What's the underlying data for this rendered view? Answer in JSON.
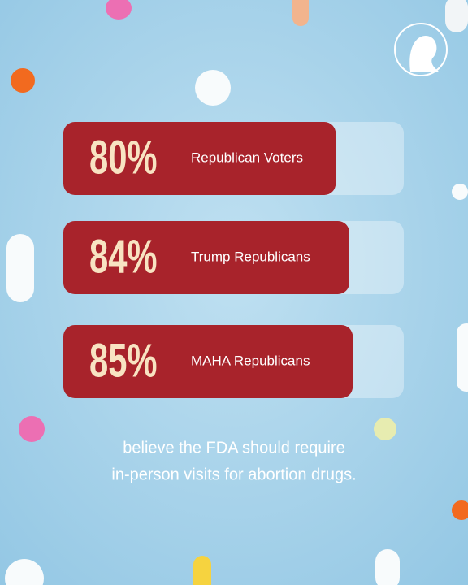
{
  "chart_data": {
    "type": "bar",
    "orientation": "horizontal",
    "categories": [
      "Republican Voters",
      "Trump Republicans",
      "MAHA Republicans"
    ],
    "values": [
      80,
      84,
      85
    ],
    "value_labels": [
      "80%",
      "84%",
      "85%"
    ],
    "color": "#a8232b",
    "xlim": [
      0,
      100
    ],
    "caption": [
      "believe the FDA should require",
      "in-person visits for abortion drugs."
    ]
  }
}
